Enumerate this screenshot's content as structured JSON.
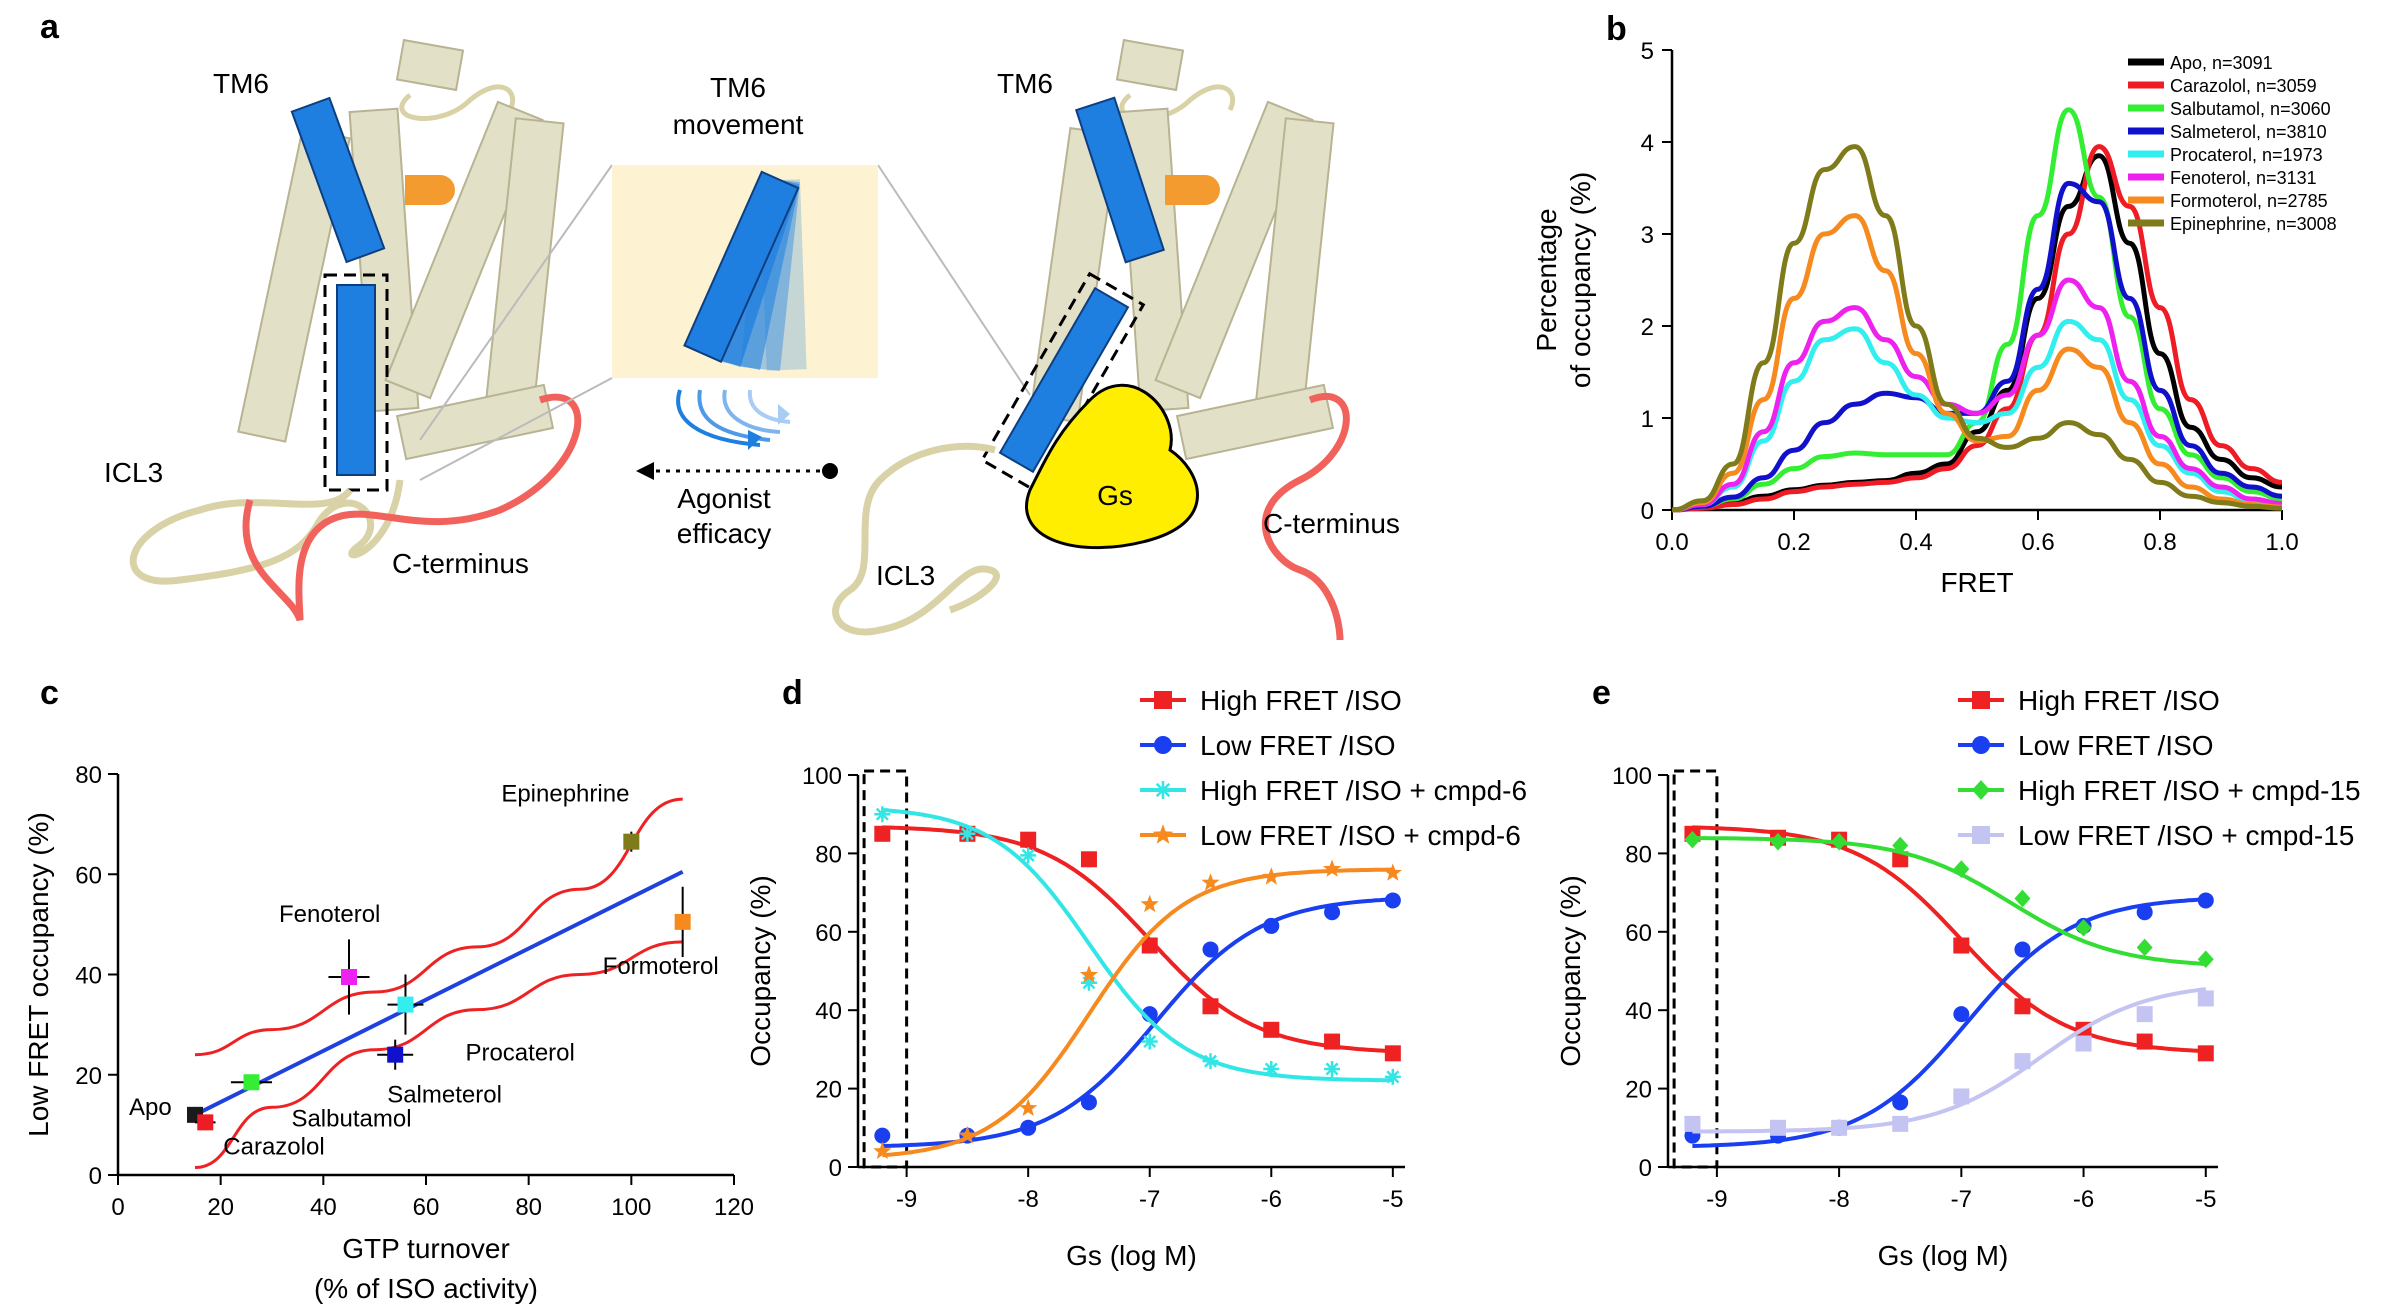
{
  "panel_a": {
    "letter": "a",
    "tm6_left": "TM6",
    "tm6_right": "TM6",
    "movement_title_1": "TM6",
    "movement_title_2": "movement",
    "efficacy_1": "Agonist",
    "efficacy_2": "efficacy",
    "icl3_left": "ICL3",
    "icl3_right": "ICL3",
    "cterm_left": "C-terminus",
    "cterm_right": "C-terminus",
    "gs_label": "Gs",
    "colors": {
      "helix": "#e3e0c8",
      "helix_stroke": "#b8b392",
      "tm6": "#1f7fe0",
      "ligand": "#f39b2f",
      "gs": "#ffee00",
      "loop": "#d9d2a6",
      "cterm": "#f2625c",
      "box": "#fdf3d2"
    }
  },
  "chart_data": [
    {
      "panel": "b",
      "type": "line",
      "title": "",
      "xlabel": "FRET",
      "ylabel_lines": [
        "Percentage",
        "of occupancy (%)"
      ],
      "xlim": [
        0,
        1.0
      ],
      "ylim": [
        0,
        5
      ],
      "xticks": [
        "0.0",
        "0.2",
        "0.4",
        "0.6",
        "0.8",
        "1.0"
      ],
      "yticks": [
        "0",
        "1",
        "2",
        "3",
        "4",
        "5"
      ],
      "legend_position": "top-right",
      "x": [
        0.0,
        0.05,
        0.1,
        0.15,
        0.2,
        0.25,
        0.3,
        0.35,
        0.4,
        0.45,
        0.5,
        0.55,
        0.6,
        0.65,
        0.7,
        0.75,
        0.8,
        0.85,
        0.9,
        0.95,
        1.0
      ],
      "series": [
        {
          "name": "Apo, n=3091",
          "color": "#000000",
          "values": [
            0,
            0.03,
            0.08,
            0.15,
            0.22,
            0.27,
            0.3,
            0.32,
            0.4,
            0.5,
            0.85,
            1.3,
            2.3,
            3.3,
            3.85,
            2.9,
            1.7,
            0.9,
            0.55,
            0.35,
            0.25
          ]
        },
        {
          "name": "Carazolol, n=3059",
          "color": "#ee1c25",
          "values": [
            0,
            0.02,
            0.06,
            0.12,
            0.2,
            0.25,
            0.28,
            0.3,
            0.35,
            0.45,
            0.7,
            1.1,
            1.9,
            3.0,
            3.95,
            3.3,
            2.2,
            1.2,
            0.7,
            0.45,
            0.3
          ]
        },
        {
          "name": "Salbutamol, n=3060",
          "color": "#33ee33",
          "values": [
            0,
            0.04,
            0.12,
            0.28,
            0.45,
            0.58,
            0.62,
            0.6,
            0.6,
            0.6,
            0.95,
            1.8,
            3.2,
            4.35,
            3.4,
            2.1,
            1.1,
            0.6,
            0.35,
            0.2,
            0.12
          ]
        },
        {
          "name": "Salmeterol, n=3810",
          "color": "#1111cc",
          "values": [
            0,
            0.04,
            0.14,
            0.35,
            0.65,
            0.95,
            1.15,
            1.27,
            1.22,
            1.05,
            1.05,
            1.4,
            2.4,
            3.55,
            3.35,
            2.3,
            1.3,
            0.7,
            0.4,
            0.25,
            0.15
          ]
        },
        {
          "name": "Procaterol, n=1973",
          "color": "#33eeee",
          "values": [
            0,
            0.06,
            0.25,
            0.75,
            1.4,
            1.85,
            1.97,
            1.6,
            1.25,
            1.0,
            0.95,
            1.05,
            1.55,
            2.05,
            1.85,
            1.2,
            0.7,
            0.4,
            0.2,
            0.1,
            0.06
          ]
        },
        {
          "name": "Fenoterol, n=3131",
          "color": "#ee22ee",
          "values": [
            0,
            0.06,
            0.28,
            0.85,
            1.6,
            2.05,
            2.2,
            1.85,
            1.45,
            1.15,
            1.05,
            1.25,
            1.9,
            2.5,
            2.2,
            1.4,
            0.8,
            0.45,
            0.25,
            0.12,
            0.07
          ]
        },
        {
          "name": "Formoterol, n=2785",
          "color": "#f68a1f",
          "values": [
            0,
            0.08,
            0.4,
            1.2,
            2.3,
            3.0,
            3.2,
            2.6,
            1.7,
            1.05,
            0.75,
            0.8,
            1.3,
            1.75,
            1.55,
            0.95,
            0.5,
            0.25,
            0.12,
            0.06,
            0.03
          ]
        },
        {
          "name": "Epinephrine, n=3008",
          "color": "#7f7a1a",
          "values": [
            0,
            0.1,
            0.5,
            1.6,
            2.9,
            3.7,
            3.95,
            3.2,
            2.0,
            1.15,
            0.78,
            0.68,
            0.78,
            0.95,
            0.82,
            0.55,
            0.3,
            0.15,
            0.08,
            0.04,
            0.02
          ]
        }
      ]
    },
    {
      "panel": "c",
      "type": "scatter",
      "title": "",
      "xlabel_lines": [
        "GTP turnover",
        "(% of ISO activity)"
      ],
      "ylabel": "Low FRET occupancy (%)",
      "xlim": [
        0,
        120
      ],
      "ylim": [
        0,
        80
      ],
      "xticks": [
        "0",
        "20",
        "40",
        "60",
        "80",
        "100",
        "120"
      ],
      "yticks": [
        "0",
        "20",
        "40",
        "60",
        "80"
      ],
      "points": [
        {
          "label": "Apo",
          "x": 15,
          "y": 12,
          "xerr": 1.5,
          "yerr": 1.5,
          "color": "#1a1a1a"
        },
        {
          "label": "Carazolol",
          "x": 17,
          "y": 10.5,
          "xerr": 2,
          "yerr": 1.5,
          "color": "#ee1c25"
        },
        {
          "label": "Salbutamol",
          "x": 26,
          "y": 18.5,
          "xerr": 4,
          "yerr": 1.2,
          "color": "#33ee33"
        },
        {
          "label": "Salmeterol",
          "x": 54,
          "y": 24,
          "xerr": 3.5,
          "yerr": 3,
          "color": "#1111cc"
        },
        {
          "label": "Procaterol",
          "x": 56,
          "y": 34,
          "xerr": 3.5,
          "yerr": 6,
          "color": "#33eeee"
        },
        {
          "label": "Fenoterol",
          "x": 45,
          "y": 39.5,
          "xerr": 4,
          "yerr": 7.5,
          "color": "#ee22ee"
        },
        {
          "label": "Epinephrine",
          "x": 100,
          "y": 66.5,
          "xerr": 1.5,
          "yerr": 2,
          "color": "#7f7a1a"
        },
        {
          "label": "Formoterol",
          "x": 110,
          "y": 50.5,
          "xerr": 1.5,
          "yerr": 7,
          "color": "#f68a1f"
        }
      ],
      "fit_line": {
        "color": "#2040e0",
        "x": [
          15,
          110
        ],
        "y": [
          12,
          60.5
        ]
      },
      "ci_upper": {
        "color": "#ee2222",
        "x": [
          15,
          30,
          50,
          70,
          90,
          110
        ],
        "y": [
          24,
          29,
          36.5,
          45.5,
          57,
          75
        ]
      },
      "ci_lower": {
        "color": "#ee2222",
        "x": [
          15,
          30,
          50,
          70,
          90,
          110
        ],
        "y": [
          1.5,
          13.5,
          25,
          33,
          40,
          46.5
        ]
      }
    },
    {
      "panel": "d",
      "type": "line",
      "title": "",
      "xlabel": "Gs (log M)",
      "ylabel": "Occupancy (%)",
      "xlim": [
        -9.4,
        -4.9
      ],
      "ylim": [
        0,
        100
      ],
      "xticks": [
        "-9",
        "-8",
        "-7",
        "-6",
        "-5"
      ],
      "yticks": [
        "0",
        "20",
        "40",
        "60",
        "80",
        "100"
      ],
      "legend_position": "top-right",
      "data_x": [
        -9.2,
        -8.5,
        -8,
        -7.5,
        -7,
        -6.5,
        -6,
        -5.5,
        -5
      ],
      "series": [
        {
          "name": "High FRET /ISO",
          "color": "#ee2222",
          "marker": "square",
          "values": [
            85,
            85,
            83.5,
            78.5,
            56.5,
            41,
            35,
            32,
            29
          ],
          "fit": {
            "bottom": 29,
            "top": 87,
            "ec50": -7.0,
            "hill": 1.0
          }
        },
        {
          "name": "Low FRET /ISO",
          "color": "#1a3ff0",
          "marker": "circle",
          "values": [
            8,
            8,
            10,
            16.5,
            39,
            55.5,
            61.5,
            65,
            68
          ],
          "fit": {
            "bottom": 5,
            "top": 69,
            "ec50": -6.95,
            "hill": 1.0
          }
        },
        {
          "name": "High FRET /ISO + cmpd-6",
          "color": "#33e6e6",
          "marker": "asterisk",
          "values": [
            90,
            85,
            79.5,
            47,
            32,
            27,
            25,
            25,
            23
          ],
          "fit": {
            "bottom": 22,
            "top": 92,
            "ec50": -7.5,
            "hill": 1.1
          }
        },
        {
          "name": "Low FRET /ISO + cmpd-6",
          "color": "#f68a1f",
          "marker": "star",
          "values": [
            4,
            8,
            15,
            49,
            67,
            72.5,
            74,
            76,
            75
          ],
          "fit": {
            "bottom": 2,
            "top": 76,
            "ec50": -7.5,
            "hill": 1.1
          }
        }
      ],
      "highlight_box_x": [
        -9.35,
        -9.0
      ]
    },
    {
      "panel": "e",
      "type": "line",
      "title": "",
      "xlabel": "Gs (log M)",
      "ylabel": "Occupancy (%)",
      "xlim": [
        -9.4,
        -4.9
      ],
      "ylim": [
        0,
        100
      ],
      "xticks": [
        "-9",
        "-8",
        "-7",
        "-6",
        "-5"
      ],
      "yticks": [
        "0",
        "20",
        "40",
        "60",
        "80",
        "100"
      ],
      "legend_position": "top-right",
      "data_x": [
        -9.2,
        -8.5,
        -8,
        -7.5,
        -7,
        -6.5,
        -6,
        -5.5,
        -5
      ],
      "series": [
        {
          "name": "High FRET /ISO",
          "color": "#ee2222",
          "marker": "square",
          "values": [
            85,
            84,
            83.5,
            78.5,
            56.5,
            41,
            35,
            32,
            29
          ],
          "fit": {
            "bottom": 29,
            "top": 87,
            "ec50": -7.0,
            "hill": 1.0
          }
        },
        {
          "name": "Low FRET /ISO",
          "color": "#1a3ff0",
          "marker": "circle",
          "values": [
            8,
            8,
            10,
            16.5,
            39,
            55.5,
            61.5,
            65,
            68
          ],
          "fit": {
            "bottom": 5,
            "top": 69,
            "ec50": -6.95,
            "hill": 1.0
          }
        },
        {
          "name": "High FRET /ISO + cmpd-15",
          "color": "#33dd33",
          "marker": "diamond",
          "values": [
            83.5,
            83,
            83,
            82,
            76,
            68.5,
            61,
            56,
            53
          ],
          "fit": {
            "bottom": 51,
            "top": 84,
            "ec50": -6.6,
            "hill": 1.0
          }
        },
        {
          "name": "Low FRET /ISO + cmpd-15",
          "color": "#c4c4f2",
          "marker": "square",
          "values": [
            11,
            10,
            10,
            11,
            18,
            27,
            31.5,
            39,
            43
          ],
          "fit": {
            "bottom": 9,
            "top": 47,
            "ec50": -6.35,
            "hill": 1.0
          }
        }
      ],
      "highlight_box_x": [
        -9.35,
        -9.0
      ]
    }
  ]
}
